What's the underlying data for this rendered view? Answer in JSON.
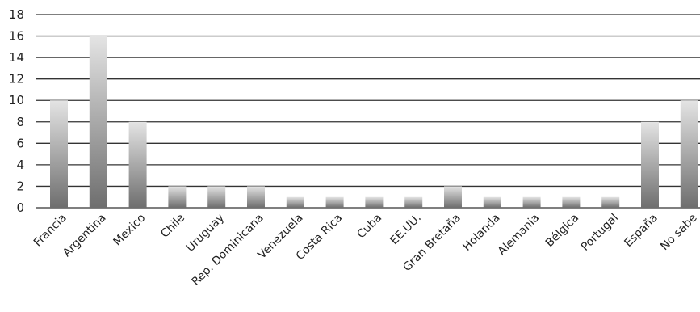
{
  "chart_data": {
    "type": "bar",
    "categories": [
      "Francia",
      "Argentina",
      "Mexico",
      "Chile",
      "Uruguay",
      "Rep. Dominicana",
      "Venezuela",
      "Costa Rica",
      "Cuba",
      "EE.UU.",
      "Gran Bretaña",
      "Holanda",
      "Alemania",
      "Bélgica",
      "Portugal",
      "España",
      "No sabe"
    ],
    "values": [
      10,
      16,
      8,
      2,
      2,
      2,
      1,
      1,
      1,
      1,
      2,
      1,
      1,
      1,
      1,
      8,
      10
    ],
    "ylim": [
      0,
      18
    ],
    "yticks": [
      "0",
      "2",
      "4",
      "6",
      "8",
      "10",
      "12",
      "14",
      "16",
      "18"
    ],
    "grid": true,
    "legend": "none",
    "colors": {
      "bar_dark": "#6e6e6e",
      "bar_light": "#e4e4e4",
      "grid": "#333333"
    }
  }
}
